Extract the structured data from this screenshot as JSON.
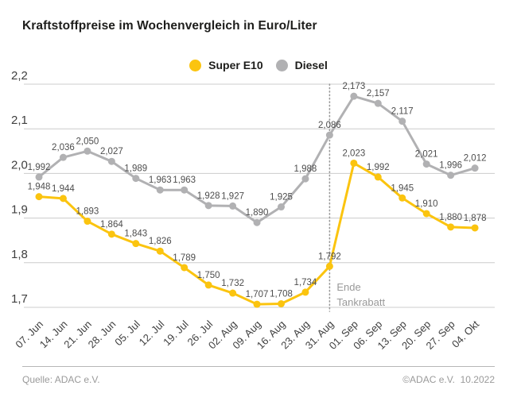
{
  "page": {
    "title": "Kraftstoffpreise im Wochenvergleich in Euro/Liter",
    "footer": {
      "source": "Quelle: ADAC e.V.",
      "copyright": "©ADAC e.V.  10.2022"
    }
  },
  "chart_data": {
    "type": "line",
    "title": "Kraftstoffpreise im Wochenvergleich in Euro/Liter",
    "unit": "Euro/Liter",
    "categories": [
      "07. Jun",
      "14. Jun",
      "21. Jun",
      "28. Jun",
      "05. Jul",
      "12. Jul",
      "19. Jul",
      "26. Jul",
      "02. Aug",
      "09. Aug",
      "16. Aug",
      "23. Aug",
      "31. Aug",
      "01. Sep",
      "06. Sep",
      "13. Sep",
      "20. Sep",
      "27. Sep",
      "04. Okt"
    ],
    "series": [
      {
        "name": "Super E10",
        "color": "#fbc40f",
        "values": [
          1.948,
          1.944,
          1.893,
          1.864,
          1.843,
          1.826,
          1.789,
          1.75,
          1.732,
          1.707,
          1.708,
          1.734,
          1.792,
          2.023,
          1.992,
          1.945,
          1.91,
          1.88,
          1.878
        ]
      },
      {
        "name": "Diesel",
        "color": "#b1b1b3",
        "values": [
          1.992,
          2.036,
          2.05,
          2.027,
          1.989,
          1.963,
          1.963,
          1.928,
          1.927,
          1.89,
          1.925,
          1.988,
          2.086,
          2.173,
          2.157,
          2.117,
          2.021,
          1.996,
          2.012
        ]
      }
    ],
    "ylim": [
      1.7,
      2.2
    ],
    "yticks": [
      2.2,
      2.1,
      2.0,
      1.9,
      1.8,
      1.7
    ],
    "decimal_separator": ",",
    "grid": true,
    "legend_position": "top-center",
    "value_labels": true,
    "annotation": {
      "lines": [
        "Ende",
        "Tankrabatt"
      ],
      "category": "31. Aug",
      "category_index": 12,
      "line_style": "dotted"
    },
    "colors": {
      "grid": "#cccccc",
      "axis_text": "#3f3f3f",
      "value_label_text": "#4d4d4d",
      "annotation_text": "#999999",
      "annotation_line": "#999999"
    }
  }
}
